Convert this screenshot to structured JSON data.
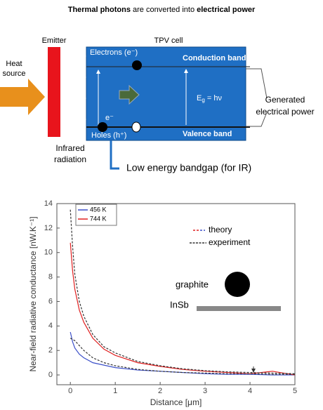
{
  "diagram": {
    "title": [
      "Thermal photons",
      " are converted into ",
      "electrical power"
    ],
    "emitter": "Emitter",
    "tpv_cell": "TPV cell",
    "heat_source": [
      "Heat",
      "source"
    ],
    "electrons": "Electrons (e⁻)",
    "conduction_band": "Conduction band",
    "electron_symbol": "e⁻",
    "bandgap": [
      "E",
      "g",
      " = hν"
    ],
    "holes": "Holes (h⁺)",
    "valence_band": "Valence band",
    "generated_power": [
      "Generated",
      "electrical power"
    ],
    "infrared": [
      "Infrared",
      "radiation"
    ],
    "low_bandgap": "Low energy bandgap (for IR)"
  },
  "chart_data": {
    "type": "line",
    "x_label": "Distance [μm]",
    "y_label": "Near-field radiative conductance [nW.K⁻¹]",
    "x": [
      0,
      0.05,
      0.1,
      0.2,
      0.3,
      0.5,
      0.75,
      1,
      1.5,
      2,
      2.5,
      3,
      3.5,
      4,
      4.5,
      5
    ],
    "series": [
      {
        "name": "456 K",
        "color": "#3b4fc8",
        "dash": false,
        "values": [
          3.5,
          2.7,
          2.2,
          1.7,
          1.4,
          1.0,
          0.8,
          0.6,
          0.4,
          0.3,
          0.2,
          0.1,
          0.05,
          0.05,
          0.0,
          0.0
        ]
      },
      {
        "name": "744 K",
        "color": "#e02020",
        "dash": false,
        "values": [
          10.8,
          8.5,
          7.0,
          5.3,
          4.3,
          3.0,
          2.1,
          1.6,
          1.0,
          0.7,
          0.45,
          0.3,
          0.2,
          0.1,
          0.3,
          0.0
        ]
      },
      {
        "color": "#333333",
        "dash": true,
        "values": [
          13.5,
          10.5,
          8.2,
          6.0,
          4.8,
          3.3,
          2.3,
          1.8,
          1.1,
          0.75,
          0.5,
          0.35,
          0.25,
          0.2,
          0.15,
          0.1
        ]
      },
      {
        "color": "#333333",
        "dash": true,
        "values": [
          3.0,
          2.9,
          2.8,
          2.4,
          2.0,
          1.4,
          1.0,
          0.75,
          0.45,
          0.3,
          0.2,
          0.15,
          0.1,
          0.1,
          0.05,
          0.05
        ]
      }
    ],
    "xlim": [
      -0.3,
      5
    ],
    "ylim": [
      -0.8,
      14
    ],
    "xticks": [
      0,
      1,
      2,
      3,
      4,
      5
    ],
    "yticks": [
      0,
      2,
      4,
      6,
      8,
      10,
      12,
      14
    ],
    "annotations": {
      "theory": "theory",
      "experiment": "experiment",
      "graphite": "graphite",
      "insb": "InSb"
    }
  }
}
